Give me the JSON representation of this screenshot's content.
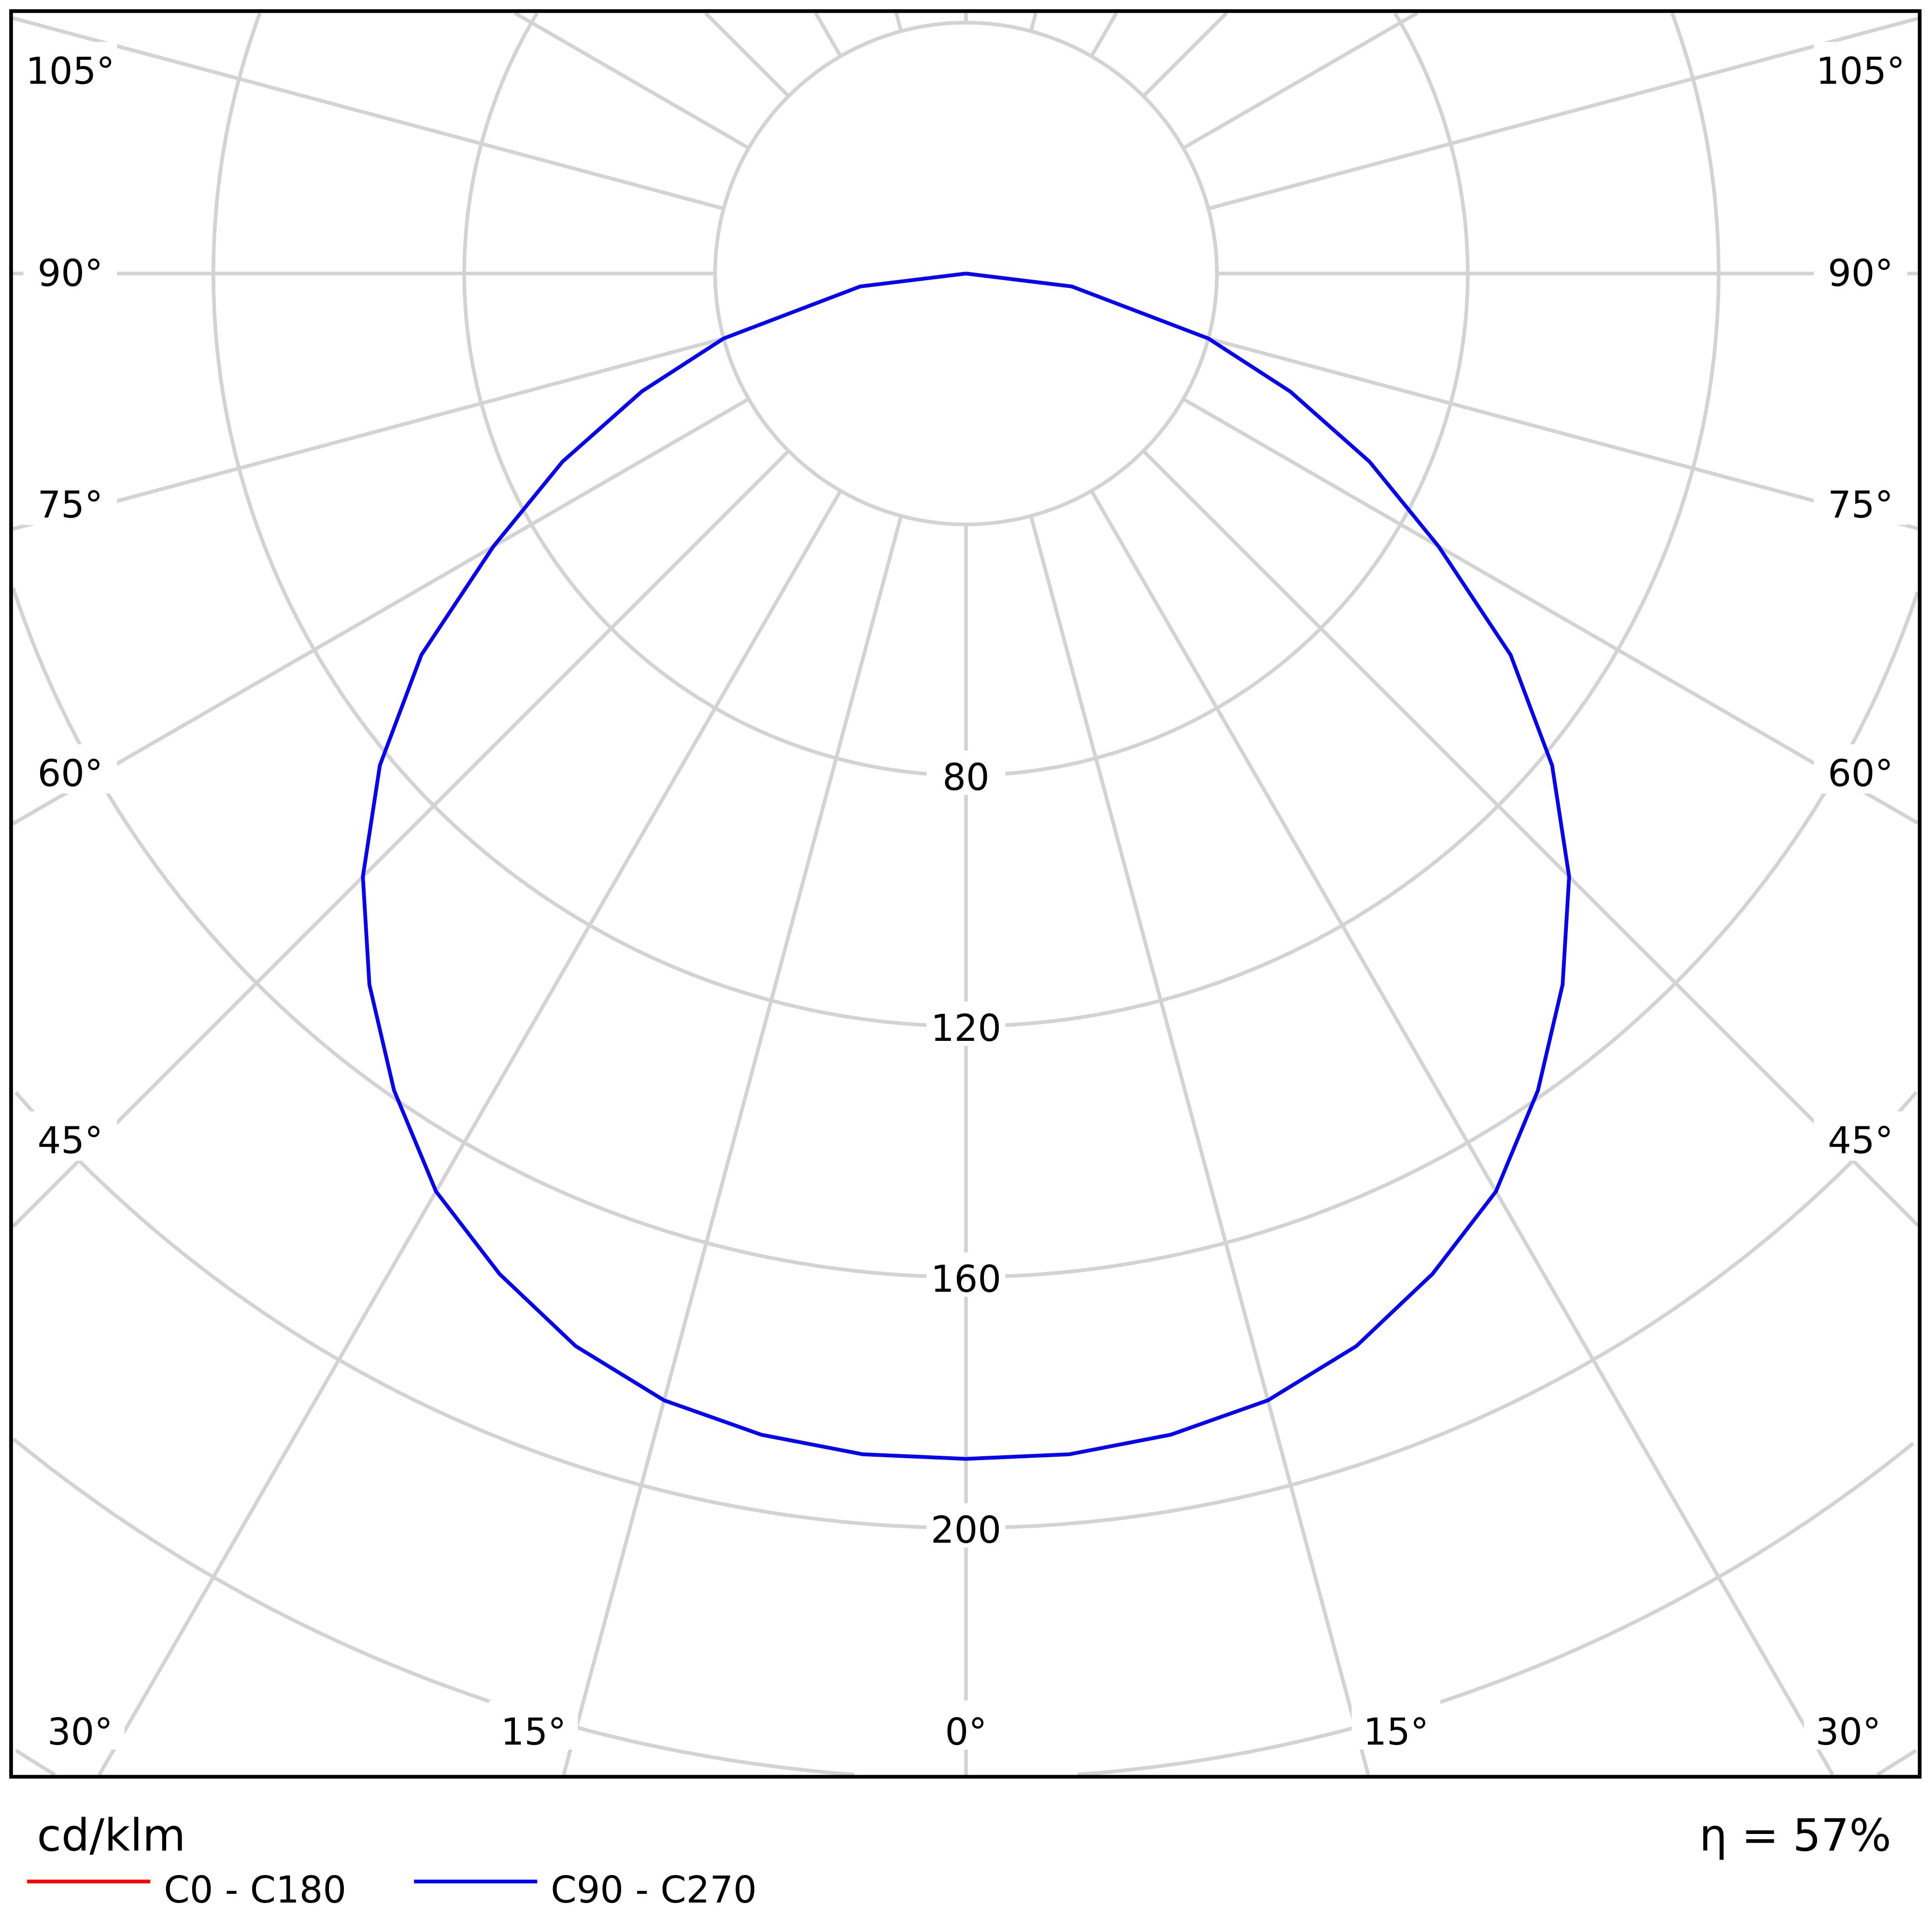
{
  "chart_data": {
    "type": "polar",
    "unit_label": "cd/klm",
    "efficiency_label": "η = 57%",
    "radial_ticks": [
      80,
      120,
      160,
      200
    ],
    "radial_grid_step": 40,
    "angle_ticks_left": [
      "105°",
      "90°",
      "75°",
      "60°",
      "45°"
    ],
    "angle_ticks_bottom": [
      "30°",
      "15°",
      "0°",
      "15°",
      "30°"
    ],
    "grid": true,
    "legend_placement": "bottom-left",
    "angles": [
      0,
      5,
      10,
      15,
      20,
      25,
      30,
      35,
      40,
      45,
      50,
      55,
      60,
      65,
      70,
      75,
      83,
      90
    ],
    "series": [
      {
        "name": "C0 - C180",
        "color": "#ff0000",
        "values": [
          189,
          189,
          188,
          186,
          182,
          176,
          169,
          159,
          148,
          136,
          122,
          106,
          87,
          71,
          55,
          40,
          17,
          0
        ]
      },
      {
        "name": "C90 - C270",
        "color": "#0000ff",
        "values": [
          189,
          189,
          188,
          186,
          182,
          176,
          169,
          159,
          148,
          136,
          122,
          106,
          87,
          71,
          55,
          40,
          17,
          0
        ]
      }
    ]
  }
}
